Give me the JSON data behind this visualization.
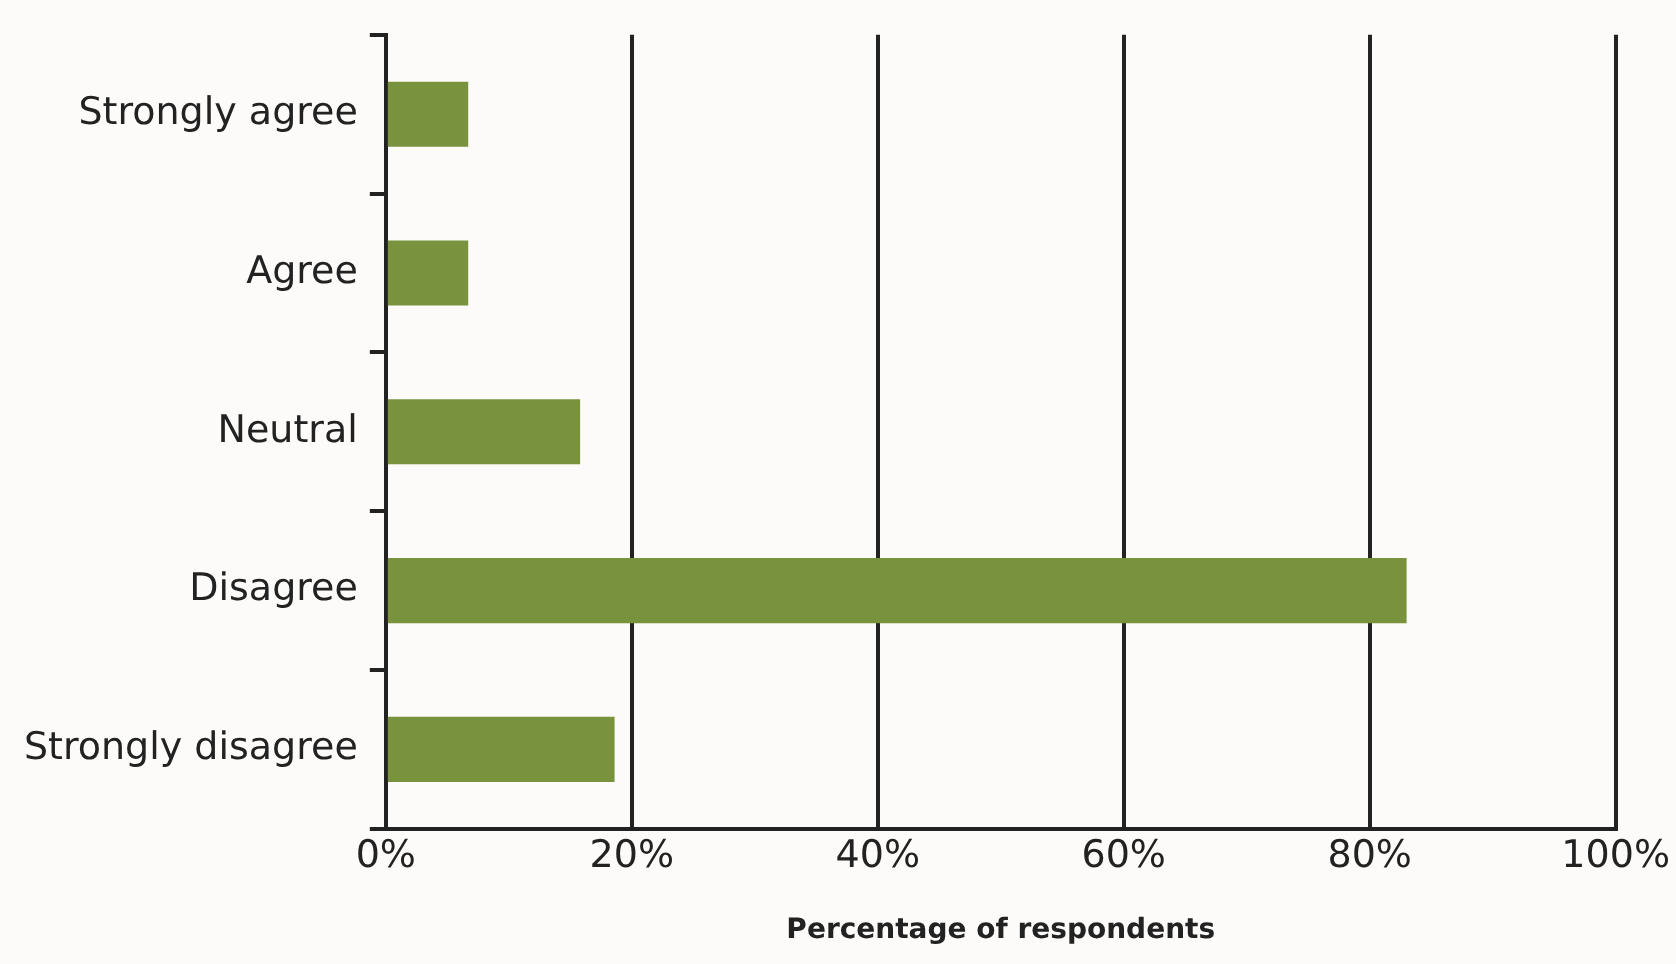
{
  "chart_data": {
    "type": "bar",
    "orientation": "horizontal",
    "xlabel": "Percentage of respondents",
    "categories": [
      "Strongly agree",
      "Agree",
      "Neutral",
      "Disagree",
      "Strongly disagree"
    ],
    "values": [
      6.7,
      6.7,
      15.8,
      83,
      18.6
    ],
    "color": "#78923e",
    "xlim": [
      0,
      100
    ],
    "xticks": [
      {
        "value": 0,
        "label": "0%"
      },
      {
        "value": 20,
        "label": "20%"
      },
      {
        "value": 40,
        "label": "40%"
      },
      {
        "value": 60,
        "label": "60%"
      },
      {
        "value": 80,
        "label": "80%"
      },
      {
        "value": 100,
        "label": "100%"
      }
    ],
    "grid": "x",
    "legend": false
  }
}
